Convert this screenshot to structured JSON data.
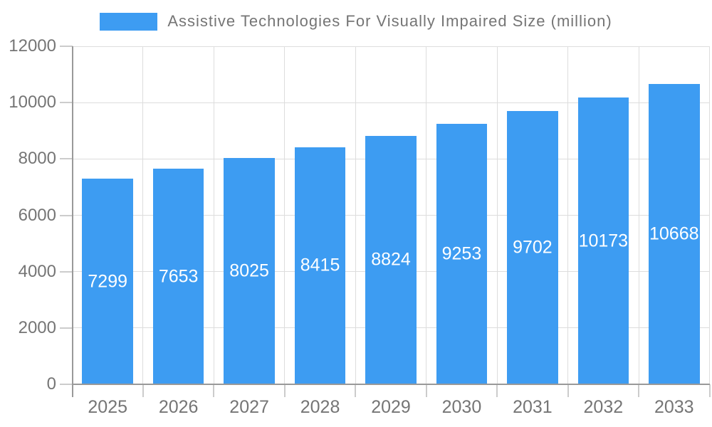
{
  "legend": {
    "label": "Assistive Technologies For Visually Impaired Size (million)"
  },
  "colors": {
    "bar": "#3d9cf2",
    "grid": "#dddddd",
    "tick": "#cccccc",
    "axis": "#999999",
    "text": "#757575",
    "bar_label": "#ffffff"
  },
  "chart_data": {
    "type": "bar",
    "categories": [
      "2025",
      "2026",
      "2027",
      "2028",
      "2029",
      "2030",
      "2031",
      "2032",
      "2033"
    ],
    "values": [
      7299,
      7653,
      8025,
      8415,
      8824,
      9253,
      9702,
      10173,
      10668
    ],
    "title": "Assistive Technologies For Visually Impaired Size (million)",
    "xlabel": "",
    "ylabel": "",
    "ylim": [
      0,
      12000
    ],
    "yticks": [
      0,
      2000,
      4000,
      6000,
      8000,
      10000,
      12000
    ],
    "grid": true,
    "legend_position": "top-center",
    "value_labels": "inside-middle-white"
  }
}
